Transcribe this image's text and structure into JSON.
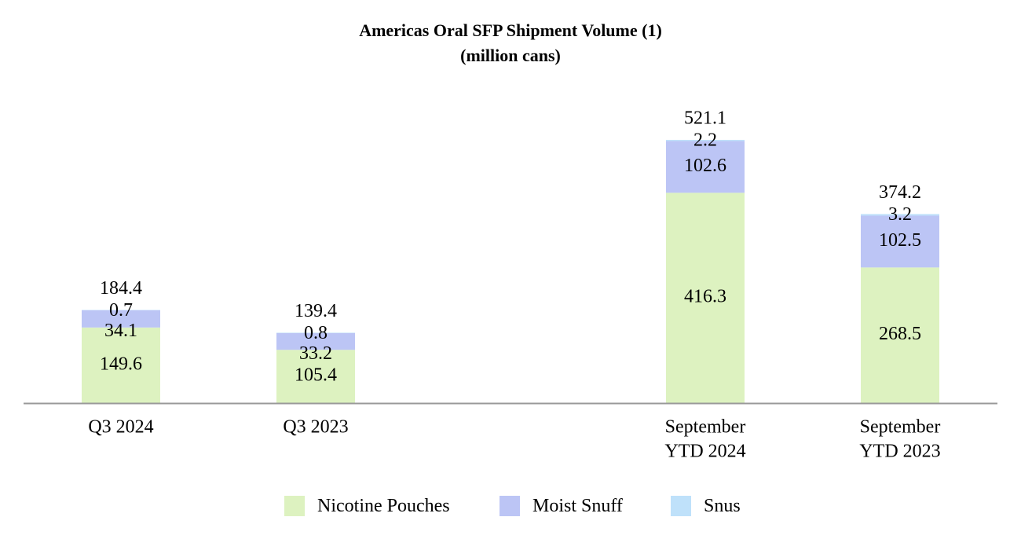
{
  "chart_data": {
    "type": "bar",
    "stacked": true,
    "title": "Americas Oral SFP Shipment Volume (1)",
    "subtitle": "(million cans)",
    "categories": [
      [
        "Q3 2024"
      ],
      [
        "Q3 2023"
      ],
      [
        "September",
        "YTD 2024"
      ],
      [
        "September",
        "YTD 2023"
      ]
    ],
    "series": [
      {
        "name": "Nicotine Pouches",
        "color": "#ddf2c0",
        "values": [
          149.6,
          105.4,
          416.3,
          268.5
        ]
      },
      {
        "name": "Moist Snuff",
        "color": "#bcc5f5",
        "values": [
          34.1,
          33.2,
          102.6,
          102.5
        ]
      },
      {
        "name": "Snus",
        "color": "#bfe1fa",
        "values": [
          0.7,
          0.8,
          2.2,
          3.2
        ]
      }
    ],
    "value_labels": [
      [
        "149.6",
        "105.4",
        "416.3",
        "268.5"
      ],
      [
        "34.1",
        "33.2",
        "102.6",
        "102.5"
      ],
      [
        "0.7",
        "0.8",
        "2.2",
        "3.2"
      ]
    ],
    "totals": [
      "184.4",
      "139.4",
      "521.1",
      "374.2"
    ],
    "ylim": [
      0,
      521.1
    ],
    "grid": false,
    "legend_position": "bottom"
  }
}
